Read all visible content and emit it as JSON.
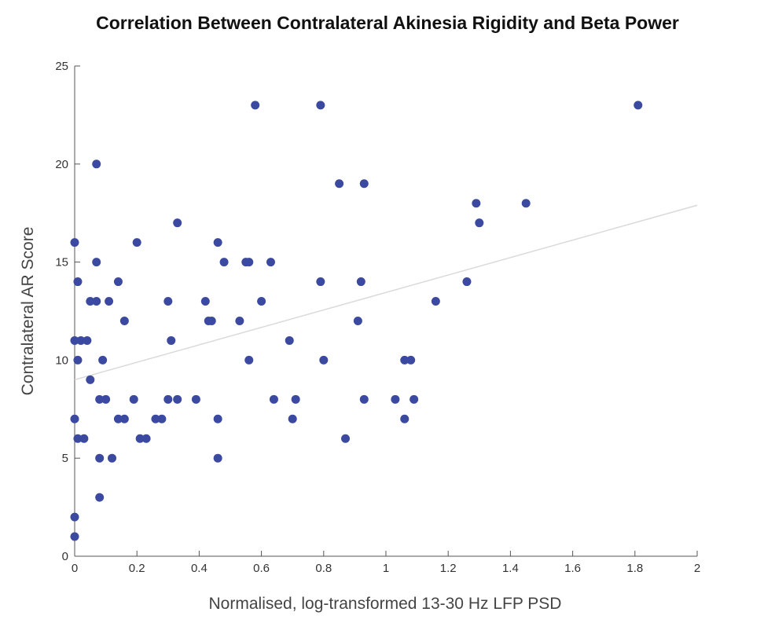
{
  "chart_data": {
    "type": "scatter",
    "title": "Correlation Between Contralateral Akinesia Rigidity and Beta Power",
    "xlabel": "Normalised, log-transformed 13-30 Hz LFP PSD",
    "ylabel": "Contralateral AR Score",
    "xlim": [
      0,
      2
    ],
    "ylim": [
      0,
      25
    ],
    "xticks": [
      0,
      0.2,
      0.4,
      0.6,
      0.8,
      1,
      1.2,
      1.4,
      1.6,
      1.8,
      2
    ],
    "xtick_labels": [
      "0",
      "0.2",
      "0.4",
      "0.6",
      "0.8",
      "1",
      "1.2",
      "1.4",
      "1.6",
      "1.8",
      "2"
    ],
    "yticks": [
      0,
      5,
      10,
      15,
      20,
      25
    ],
    "ytick_labels": [
      "0",
      "5",
      "10",
      "15",
      "20",
      "25"
    ],
    "grid": false,
    "point_color": "#3b4aa0",
    "trend_color": "#d9d9d9",
    "trend_line": {
      "x": [
        0,
        2
      ],
      "y": [
        9.0,
        17.9
      ]
    },
    "points": [
      {
        "x": 0.0,
        "y": 1
      },
      {
        "x": 0.0,
        "y": 2
      },
      {
        "x": 0.0,
        "y": 7
      },
      {
        "x": 0.0,
        "y": 11
      },
      {
        "x": 0.0,
        "y": 16
      },
      {
        "x": 0.01,
        "y": 6
      },
      {
        "x": 0.01,
        "y": 10
      },
      {
        "x": 0.01,
        "y": 14
      },
      {
        "x": 0.02,
        "y": 11
      },
      {
        "x": 0.03,
        "y": 6
      },
      {
        "x": 0.04,
        "y": 11
      },
      {
        "x": 0.05,
        "y": 13
      },
      {
        "x": 0.05,
        "y": 9
      },
      {
        "x": 0.07,
        "y": 20
      },
      {
        "x": 0.07,
        "y": 15
      },
      {
        "x": 0.07,
        "y": 13
      },
      {
        "x": 0.08,
        "y": 5
      },
      {
        "x": 0.08,
        "y": 8
      },
      {
        "x": 0.08,
        "y": 3
      },
      {
        "x": 0.09,
        "y": 10
      },
      {
        "x": 0.1,
        "y": 8
      },
      {
        "x": 0.11,
        "y": 13
      },
      {
        "x": 0.12,
        "y": 5
      },
      {
        "x": 0.14,
        "y": 14
      },
      {
        "x": 0.14,
        "y": 7
      },
      {
        "x": 0.16,
        "y": 12
      },
      {
        "x": 0.16,
        "y": 7
      },
      {
        "x": 0.19,
        "y": 8
      },
      {
        "x": 0.2,
        "y": 16
      },
      {
        "x": 0.21,
        "y": 6
      },
      {
        "x": 0.23,
        "y": 6
      },
      {
        "x": 0.26,
        "y": 7
      },
      {
        "x": 0.28,
        "y": 7
      },
      {
        "x": 0.3,
        "y": 13
      },
      {
        "x": 0.3,
        "y": 8
      },
      {
        "x": 0.31,
        "y": 11
      },
      {
        "x": 0.33,
        "y": 17
      },
      {
        "x": 0.33,
        "y": 8
      },
      {
        "x": 0.39,
        "y": 8
      },
      {
        "x": 0.42,
        "y": 13
      },
      {
        "x": 0.43,
        "y": 12
      },
      {
        "x": 0.44,
        "y": 12
      },
      {
        "x": 0.46,
        "y": 7
      },
      {
        "x": 0.46,
        "y": 16
      },
      {
        "x": 0.46,
        "y": 5
      },
      {
        "x": 0.48,
        "y": 15
      },
      {
        "x": 0.53,
        "y": 12
      },
      {
        "x": 0.55,
        "y": 15
      },
      {
        "x": 0.56,
        "y": 15
      },
      {
        "x": 0.56,
        "y": 10
      },
      {
        "x": 0.58,
        "y": 23
      },
      {
        "x": 0.6,
        "y": 13
      },
      {
        "x": 0.63,
        "y": 15
      },
      {
        "x": 0.64,
        "y": 8
      },
      {
        "x": 0.69,
        "y": 11
      },
      {
        "x": 0.7,
        "y": 7
      },
      {
        "x": 0.71,
        "y": 8
      },
      {
        "x": 0.79,
        "y": 23
      },
      {
        "x": 0.79,
        "y": 14
      },
      {
        "x": 0.8,
        "y": 10
      },
      {
        "x": 0.85,
        "y": 19
      },
      {
        "x": 0.87,
        "y": 6
      },
      {
        "x": 0.91,
        "y": 12
      },
      {
        "x": 0.92,
        "y": 14
      },
      {
        "x": 0.93,
        "y": 19
      },
      {
        "x": 0.93,
        "y": 8
      },
      {
        "x": 1.03,
        "y": 8
      },
      {
        "x": 1.06,
        "y": 10
      },
      {
        "x": 1.06,
        "y": 7
      },
      {
        "x": 1.08,
        "y": 10
      },
      {
        "x": 1.09,
        "y": 8
      },
      {
        "x": 1.16,
        "y": 13
      },
      {
        "x": 1.26,
        "y": 14
      },
      {
        "x": 1.29,
        "y": 18
      },
      {
        "x": 1.3,
        "y": 17
      },
      {
        "x": 1.45,
        "y": 18
      },
      {
        "x": 1.81,
        "y": 23
      }
    ]
  }
}
